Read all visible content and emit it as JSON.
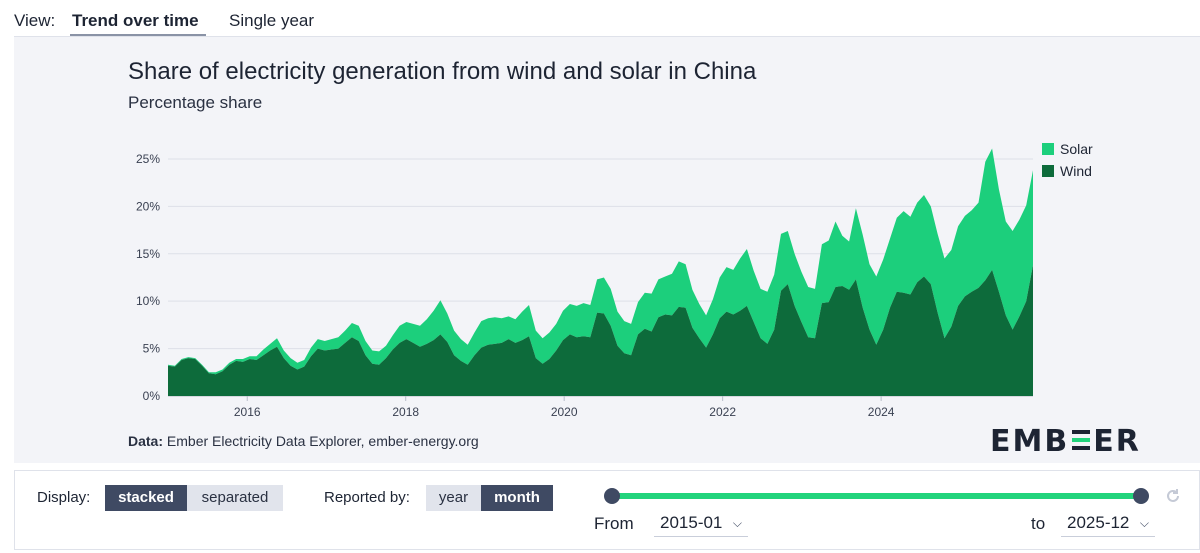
{
  "view": {
    "label": "View:",
    "tabs": [
      "Trend over time",
      "Single year"
    ],
    "active": 0
  },
  "source": {
    "prefix": "Data:",
    "text": "Ember Electricity Data Explorer, ember-energy.org"
  },
  "logo": {
    "left": "EMB",
    "right": "ER",
    "accent_color": "#22d47c"
  },
  "controls": {
    "display_label": "Display:",
    "display_options": [
      "stacked",
      "separated"
    ],
    "display_selected": "stacked",
    "reported_label": "Reported by:",
    "reported_options": [
      "year",
      "month"
    ],
    "reported_selected": "month",
    "from_label": "From",
    "from_value": "2015-01",
    "to_label": "to",
    "to_value": "2025-12"
  },
  "colors": {
    "solar": "#1ccf7c",
    "wind": "#0d6b3b",
    "accent": "#22d47c",
    "dark": "#3f4a63"
  },
  "chart_data": {
    "type": "area",
    "stacked": true,
    "title": "Share of electricity generation from wind and solar in China",
    "subtitle": "Percentage share",
    "ylabel": "Percentage share",
    "xlabel": "",
    "ylim": [
      0,
      27
    ],
    "y_ticks": [
      0,
      5,
      10,
      15,
      20,
      25
    ],
    "y_tick_labels": [
      "0%",
      "5%",
      "10%",
      "15%",
      "20%",
      "25%"
    ],
    "x_ticks": [
      2016,
      2018,
      2020,
      2022,
      2024
    ],
    "x_tick_labels": [
      "2016",
      "2018",
      "2020",
      "2022",
      "2024"
    ],
    "x_start": "2015-01",
    "x_end": "2025-12",
    "legend": [
      "Solar",
      "Wind"
    ],
    "legend_position": "top-right",
    "series": [
      {
        "name": "Wind",
        "values": [
          3.2,
          3.1,
          3.8,
          4.0,
          3.9,
          3.2,
          2.4,
          2.3,
          2.6,
          3.3,
          3.7,
          3.6,
          3.9,
          3.8,
          4.3,
          4.8,
          5.2,
          4.0,
          3.2,
          2.8,
          3.1,
          4.2,
          5.0,
          4.8,
          4.9,
          5.0,
          5.6,
          6.2,
          5.8,
          4.3,
          3.4,
          3.3,
          4.0,
          4.9,
          5.6,
          6.0,
          5.6,
          5.2,
          5.5,
          5.9,
          6.5,
          5.7,
          4.3,
          3.7,
          3.3,
          4.3,
          5.1,
          5.4,
          5.5,
          5.6,
          6.0,
          5.6,
          5.9,
          6.3,
          4.0,
          3.4,
          3.9,
          4.8,
          5.9,
          6.5,
          6.2,
          6.3,
          6.2,
          8.8,
          8.7,
          7.4,
          5.3,
          4.5,
          4.3,
          6.5,
          7.1,
          6.8,
          8.3,
          8.6,
          8.5,
          9.4,
          9.3,
          7.2,
          6.1,
          5.1,
          6.5,
          8.2,
          8.9,
          8.6,
          9.0,
          9.5,
          7.8,
          6.1,
          5.5,
          7.0,
          11.1,
          11.8,
          9.5,
          7.8,
          6.2,
          6.1,
          9.8,
          9.9,
          11.5,
          11.6,
          11.2,
          12.3,
          9.3,
          7.0,
          5.4,
          7.0,
          9.3,
          11.0,
          10.9,
          10.7,
          12.0,
          12.6,
          11.8,
          8.8,
          6.1,
          7.3,
          9.5,
          10.5,
          11.0,
          11.4,
          12.2,
          13.3,
          11.0,
          8.5,
          7.0,
          8.4,
          10.0,
          13.8
        ]
      },
      {
        "name": "Solar",
        "values": [
          0.1,
          0.1,
          0.1,
          0.1,
          0.1,
          0.1,
          0.1,
          0.2,
          0.2,
          0.2,
          0.2,
          0.3,
          0.3,
          0.4,
          0.6,
          0.7,
          0.9,
          0.8,
          0.8,
          0.7,
          0.7,
          0.9,
          1.0,
          1.0,
          1.1,
          1.2,
          1.3,
          1.5,
          1.6,
          1.5,
          1.4,
          1.4,
          1.3,
          1.5,
          1.8,
          1.8,
          2.0,
          2.2,
          2.6,
          3.1,
          3.6,
          3.0,
          2.6,
          2.3,
          2.1,
          2.4,
          2.8,
          2.8,
          2.8,
          2.6,
          2.4,
          2.5,
          3.0,
          3.3,
          2.9,
          2.7,
          2.8,
          2.8,
          3.1,
          3.2,
          3.3,
          3.5,
          3.4,
          3.5,
          3.8,
          3.9,
          3.6,
          3.4,
          3.3,
          3.4,
          3.8,
          4.0,
          4.0,
          4.0,
          4.4,
          4.8,
          4.6,
          4.0,
          3.6,
          3.4,
          3.7,
          4.3,
          4.7,
          4.7,
          5.5,
          6.0,
          5.4,
          5.2,
          5.5,
          5.8,
          6.0,
          5.6,
          5.5,
          5.3,
          5.3,
          5.2,
          6.2,
          6.5,
          6.9,
          5.3,
          5.1,
          7.5,
          7.7,
          6.9,
          7.2,
          7.4,
          7.3,
          7.8,
          8.6,
          8.2,
          8.4,
          8.6,
          8.2,
          8.3,
          8.4,
          8.1,
          8.4,
          8.5,
          8.6,
          9.0,
          12.5,
          12.8,
          10.8,
          9.9,
          10.4,
          10.2,
          10.1,
          10.0
        ]
      }
    ]
  }
}
